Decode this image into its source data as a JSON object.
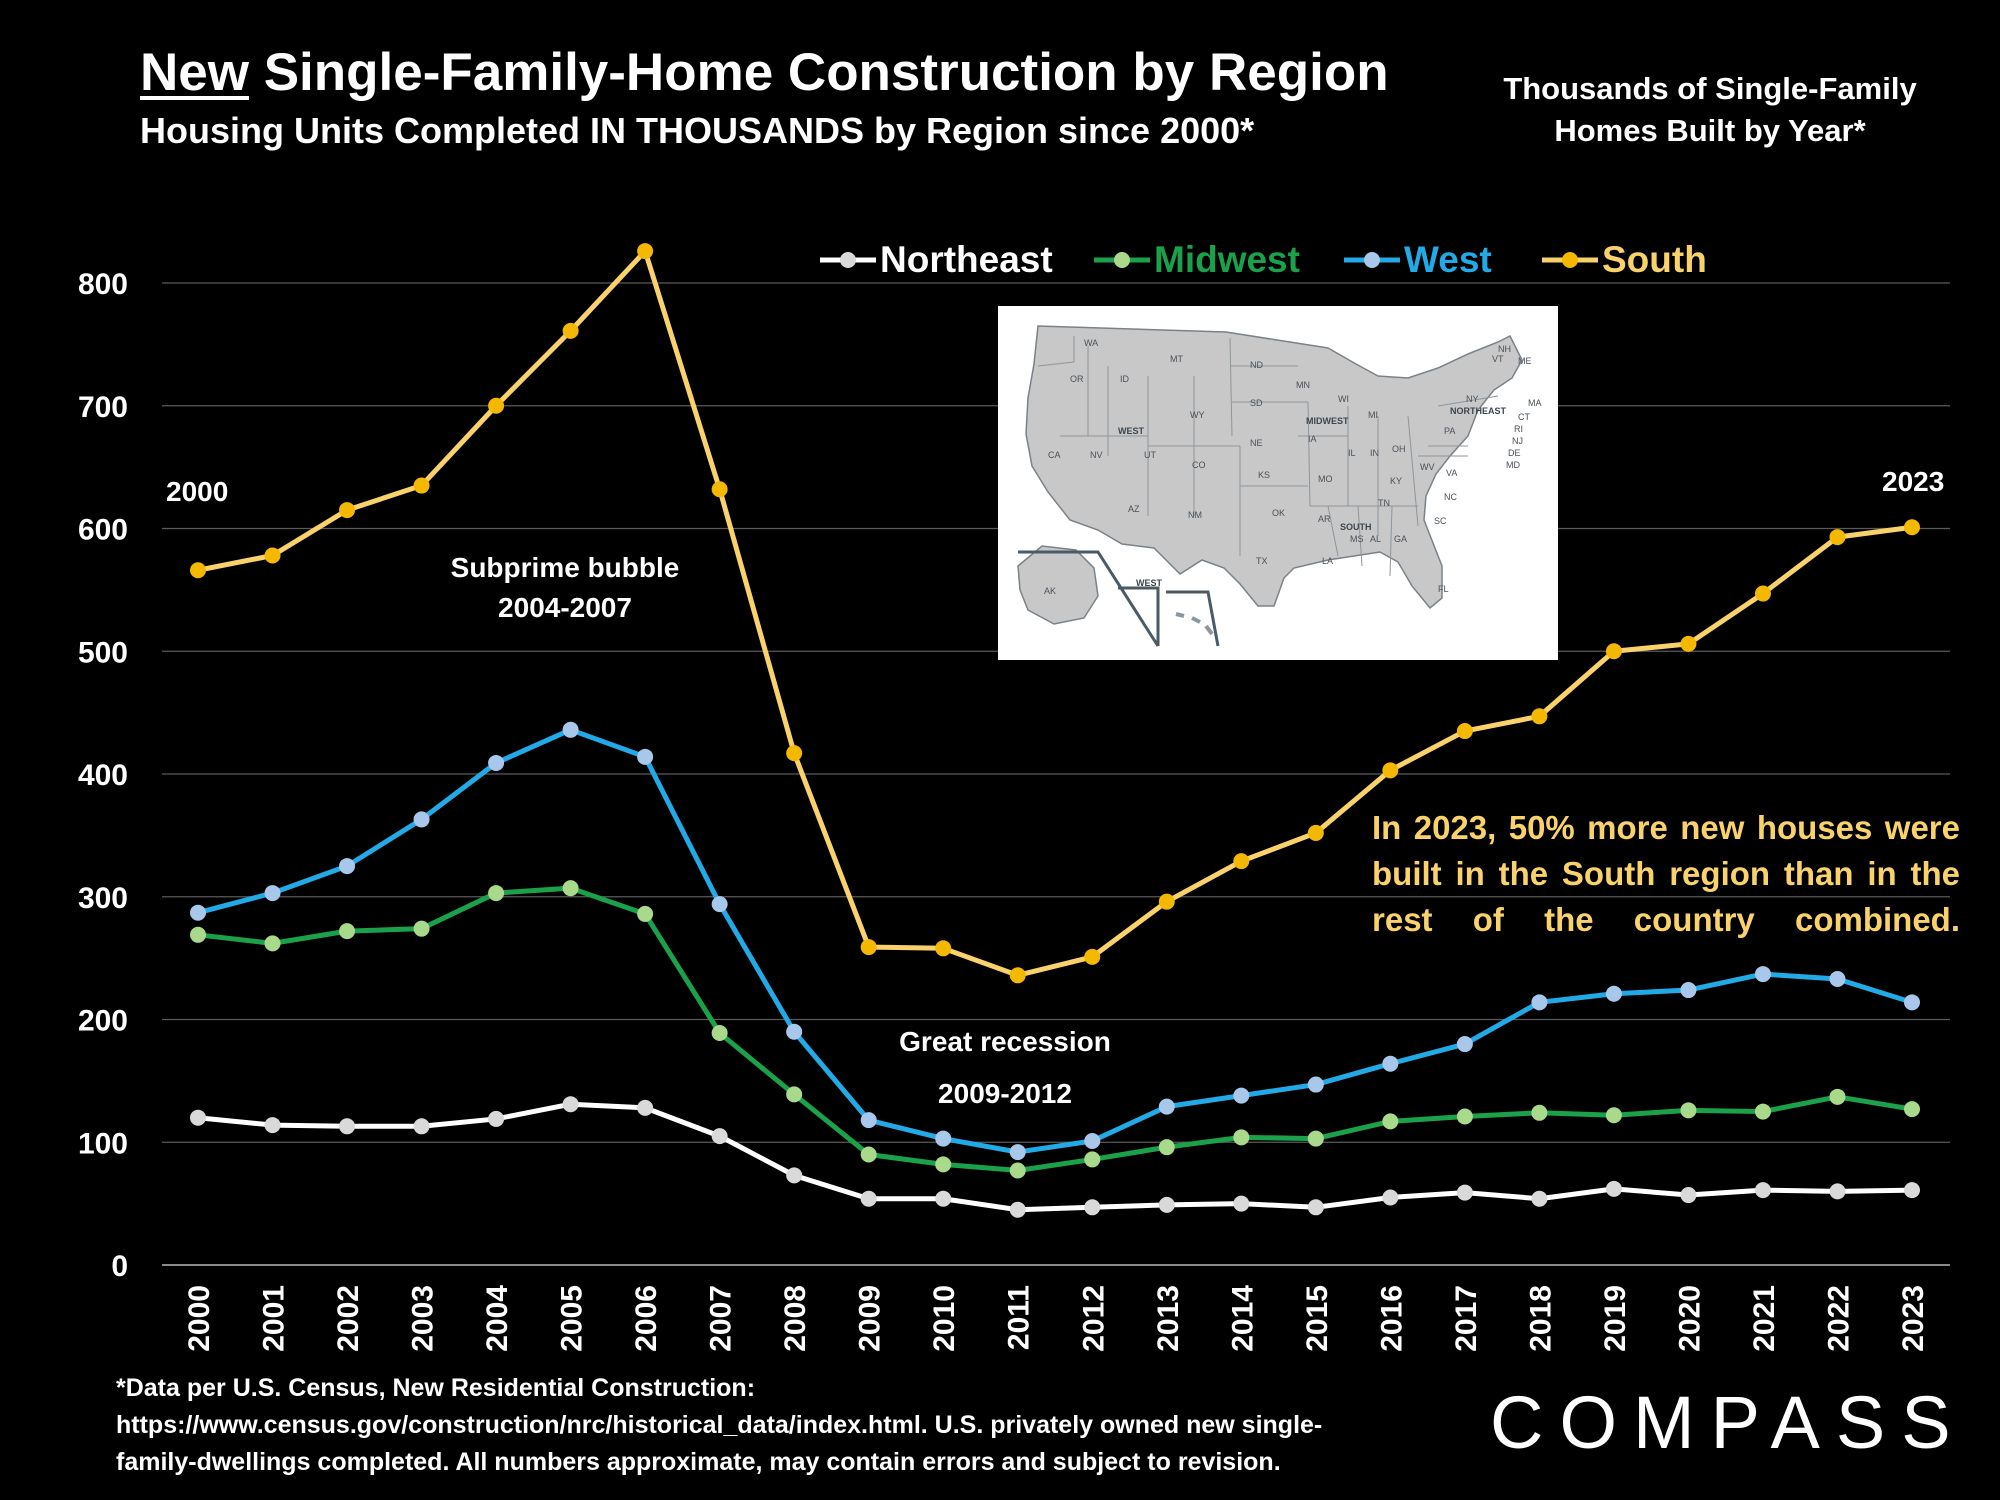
{
  "header": {
    "title_underlined": "New",
    "title_rest": " Single-Family-Home Construction by Region",
    "subtitle": "Housing Units Completed IN THOUSANDS by Region since 2000*",
    "right_title_line1": "Thousands of Single-Family",
    "right_title_line2": "Homes Built by Year*"
  },
  "annotations": {
    "start_year": "2000",
    "end_year": "2023",
    "bubble_line1": "Subprime bubble",
    "bubble_line2": "2004-2007",
    "recession_line1": "Great recession",
    "recession_line2": "2009-2012",
    "callout": "In 2023, 50% more new houses were built in the South region than in the rest of the country combined."
  },
  "map": {
    "labels": {
      "west": "WEST",
      "midwest": "MIDWEST",
      "northeast": "NORTHEAST",
      "south": "SOUTH",
      "west_inset": "WEST",
      "wa": "WA",
      "or": "OR",
      "ca": "CA",
      "id": "ID",
      "nv": "NV",
      "mt": "MT",
      "wy": "WY",
      "ut": "UT",
      "az": "AZ",
      "co": "CO",
      "nm": "NM",
      "nd": "ND",
      "sd": "SD",
      "ne": "NE",
      "ks": "KS",
      "ok": "OK",
      "tx": "TX",
      "mn": "MN",
      "ia": "IA",
      "mo": "MO",
      "ar": "AR",
      "la": "LA",
      "wi": "WI",
      "il": "IL",
      "mi": "MI",
      "in": "IN",
      "oh": "OH",
      "ky": "KY",
      "tn": "TN",
      "ms": "MS",
      "al": "AL",
      "ga": "GA",
      "fl": "FL",
      "sc": "SC",
      "nc": "NC",
      "va": "VA",
      "wv": "WV",
      "pa": "PA",
      "ny": "NY",
      "vt": "VT",
      "nh": "NH",
      "me": "ME",
      "ma": "MA",
      "ct": "CT",
      "ri": "RI",
      "nj": "NJ",
      "de": "DE",
      "md": "MD",
      "ak": "AK"
    }
  },
  "footer": {
    "footnote_line1": "*Data per U.S. Census, New Residential Construction:",
    "footnote_line2": "https://www.census.gov/construction/nrc/historical_data/index.html. U.S. privately owned new single-",
    "footnote_line3": "family-dwellings completed. All numbers approximate, may contain errors and subject to revision.",
    "logo": "COMPASS"
  },
  "chart_data": {
    "type": "line",
    "title": "New Single-Family-Home Construction by Region",
    "xlabel": "",
    "ylabel": "",
    "ylim": [
      0,
      800
    ],
    "yticks": [
      0,
      100,
      200,
      300,
      400,
      500,
      600,
      700,
      800
    ],
    "grid": true,
    "legend_position": "top-center",
    "categories": [
      "2000",
      "2001",
      "2002",
      "2003",
      "2004",
      "2005",
      "2006",
      "2007",
      "2008",
      "2009",
      "2010",
      "2011",
      "2012",
      "2013",
      "2014",
      "2015",
      "2016",
      "2017",
      "2018",
      "2019",
      "2020",
      "2021",
      "2022",
      "2023"
    ],
    "series": [
      {
        "name": "Northeast",
        "color": "#ffffff",
        "marker": "#d9d9d9",
        "values": [
          120,
          114,
          113,
          113,
          119,
          131,
          128,
          105,
          73,
          54,
          54,
          45,
          47,
          49,
          50,
          47,
          55,
          59,
          54,
          62,
          57,
          61,
          60,
          61
        ]
      },
      {
        "name": "Midwest",
        "color": "#1aa14a",
        "marker": "#a9d98a",
        "values": [
          269,
          262,
          272,
          274,
          303,
          307,
          286,
          189,
          139,
          90,
          82,
          77,
          86,
          96,
          104,
          103,
          117,
          121,
          124,
          122,
          126,
          125,
          137,
          127
        ]
      },
      {
        "name": "West",
        "color": "#22aae6",
        "marker": "#a7c8ea",
        "values": [
          287,
          303,
          325,
          363,
          409,
          436,
          414,
          294,
          190,
          118,
          103,
          92,
          101,
          129,
          138,
          147,
          164,
          180,
          214,
          221,
          224,
          237,
          233,
          214
        ]
      },
      {
        "name": "South",
        "color": "#f9d26b",
        "marker": "#f5b800",
        "values": [
          566,
          578,
          615,
          635,
          700,
          761,
          826,
          632,
          417,
          259,
          258,
          236,
          251,
          296,
          329,
          352,
          403,
          435,
          447,
          500,
          506,
          547,
          593,
          601
        ]
      }
    ]
  }
}
